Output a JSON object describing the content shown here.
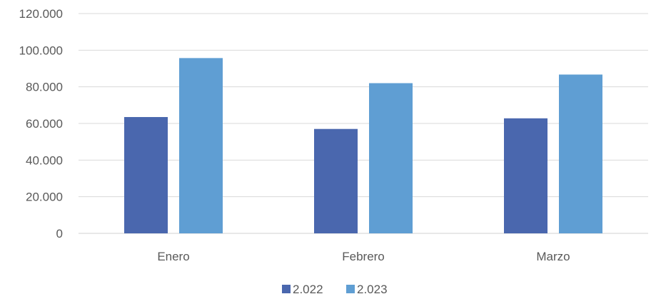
{
  "chart_data": {
    "type": "bar",
    "categories": [
      "Enero",
      "Febrero",
      "Marzo"
    ],
    "series": [
      {
        "name": "2.022",
        "values": [
          63500,
          57000,
          62800
        ],
        "color": "#4a67ae"
      },
      {
        "name": "2.023",
        "values": [
          95700,
          82000,
          86700
        ],
        "color": "#5f9ed3"
      }
    ],
    "y_ticks": [
      "0",
      "20.000",
      "40.000",
      "60.000",
      "80.000",
      "100.000",
      "120.000"
    ],
    "ylim": [
      0,
      120000
    ],
    "grid": true,
    "legend_position": "bottom",
    "title": "",
    "xlabel": "",
    "ylabel": ""
  }
}
